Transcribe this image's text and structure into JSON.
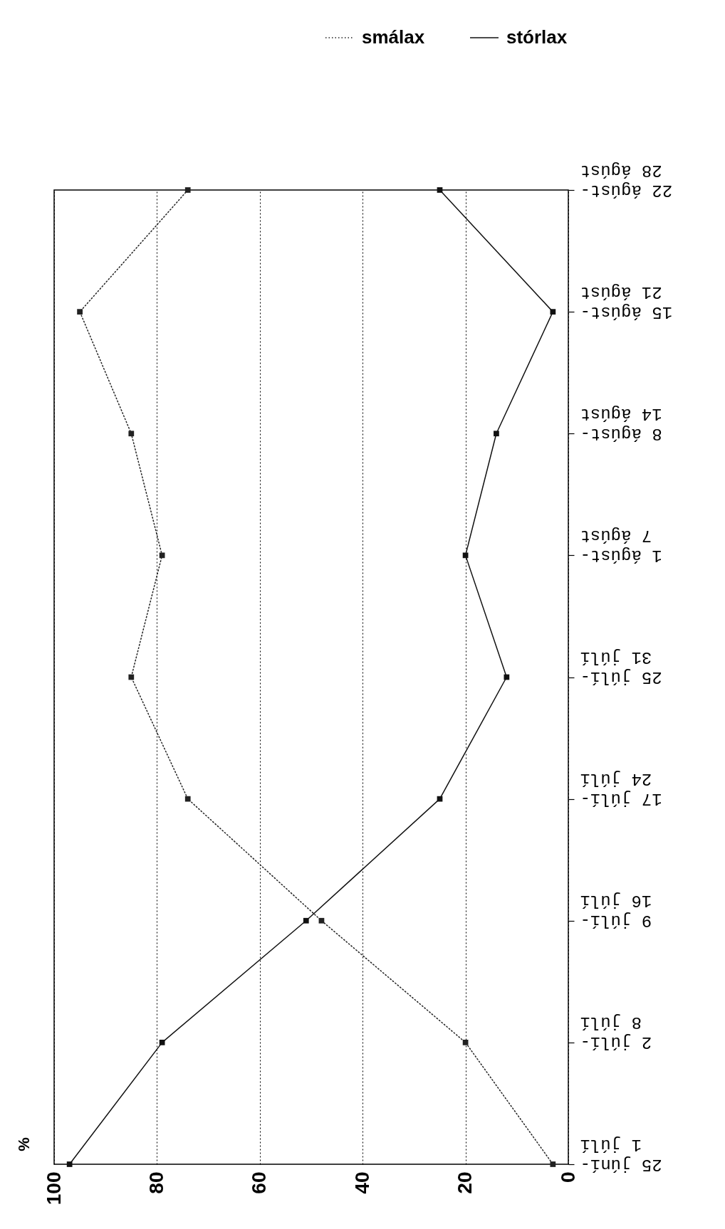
{
  "chart_data": {
    "type": "line",
    "orientation": "horizontal",
    "annotations": [
      "%"
    ],
    "categories": [
      "22 ágúst-28 ágúst",
      "15 ágúst-21 ágúst",
      "8 ágúst-14 ágúst",
      "1 ágúst-7 ágúst",
      "25 júlí-31 júlí",
      "17 júlí-24 júlí",
      "9 júlí-16 júlí",
      "2 júlí-8 júlí",
      "25 júní-1 júlí"
    ],
    "series": [
      {
        "name": "smálax",
        "color": "#222222",
        "line_style": "dotted",
        "values": [
          74,
          95,
          85,
          79,
          85,
          74,
          48,
          20,
          3
        ]
      },
      {
        "name": "stórlax",
        "color": "#111111",
        "line_style": "solid",
        "values": [
          25,
          3,
          14,
          20,
          12,
          25,
          51,
          79,
          97
        ]
      }
    ],
    "xlim": [
      100,
      0
    ],
    "xticks": [
      100,
      80,
      60,
      40,
      20,
      0
    ],
    "grid": "x",
    "legend": "top right",
    "marker": "square"
  }
}
